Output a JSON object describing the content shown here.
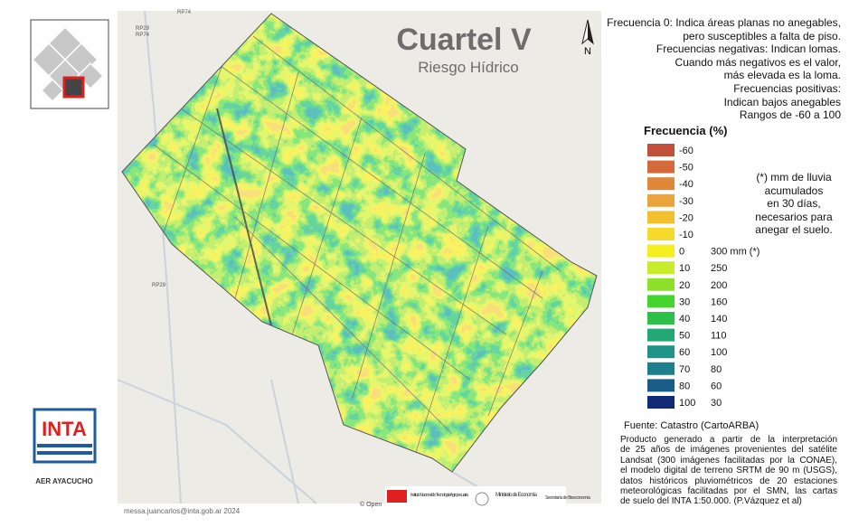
{
  "header": {
    "title": "Cuartel V",
    "subtitle": "Riesgo Hídrico",
    "north": "N"
  },
  "description": [
    "Frecuencia 0: Indica áreas planas no anegables,",
    "pero susceptibles a falta de piso.",
    "Frecuencias negativas: Indican lomas.",
    "Cuando más negativos es el valor,",
    "más elevada es la loma.",
    "Frecuencias positivas:",
    "Indican bajos anegables",
    "Rangos de -60 a 100"
  ],
  "legend": {
    "title": "Frecuencia (%)",
    "items": [
      {
        "value": -60,
        "color": "#c0503a"
      },
      {
        "value": -50,
        "color": "#d4693a"
      },
      {
        "value": -40,
        "color": "#e0883a"
      },
      {
        "value": -30,
        "color": "#eaa43a"
      },
      {
        "value": -20,
        "color": "#f2c02e"
      },
      {
        "value": -10,
        "color": "#f5d92c"
      },
      {
        "value": 0,
        "color": "#f6ee1e",
        "mm": "300 mm (*)"
      },
      {
        "value": 10,
        "color": "#c6ec2a",
        "mm": 250
      },
      {
        "value": 20,
        "color": "#8ee02a",
        "mm": 200
      },
      {
        "value": 30,
        "color": "#44d42e",
        "mm": 160
      },
      {
        "value": 40,
        "color": "#2cc24a",
        "mm": 140
      },
      {
        "value": 50,
        "color": "#22a874",
        "mm": 110
      },
      {
        "value": 60,
        "color": "#1e9488",
        "mm": 100
      },
      {
        "value": 70,
        "color": "#1d7f8e",
        "mm": 80
      },
      {
        "value": 80,
        "color": "#1a5c88",
        "mm": 60
      },
      {
        "value": 100,
        "color": "#102a78",
        "mm": 30
      }
    ],
    "note": [
      "(*) mm de lluvia",
      "acumulados",
      "en 30 días,",
      "necesarios para",
      "anegar el suelo."
    ]
  },
  "source": {
    "title": "Fuente: Catastro (CartoARBA)",
    "lines": [
      "Producto generado a partir de la interpretación",
      "de 25 años de imágenes provenientes del satélite",
      "Landsat (300 imágenes facilitadas por la CONAE),",
      "el modelo digital de terreno SRTM de 90 m (USGS),",
      "datos históricos pluviométricos de 20 estaciones",
      "meteorológicas facilitadas por el SMN,  las cartas",
      "de suelo del INTA 1:50.000. (P.Vázquez et al)"
    ]
  },
  "roads": [
    "RP74",
    "RP29",
    "RP74",
    "RP29"
  ],
  "logo": {
    "name": "INTA",
    "office": "AER AYACUCHO"
  },
  "footer": {
    "credit": "messa.juancarlos@inta.gob.ar 2024",
    "osm": "© Open",
    "inta": "Instituto Nacional de Tecnología Agropecuaria",
    "ministry": "Ministerio de Economía",
    "secretary": "Secretaría de Bioeconomía"
  }
}
